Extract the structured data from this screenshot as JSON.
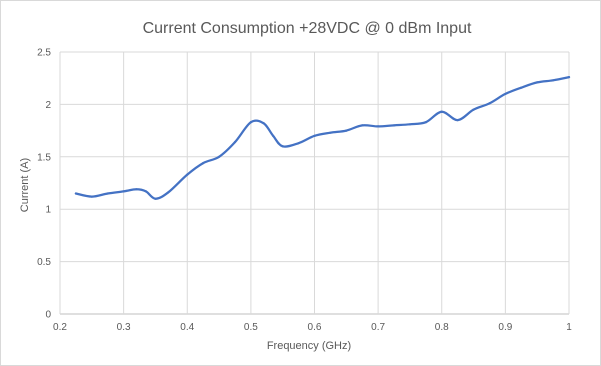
{
  "chart_data": {
    "type": "line",
    "title": "Current Consumption +28VDC @ 0 dBm Input",
    "xlabel": "Frequency (GHz)",
    "ylabel": "Current (A)",
    "xlim": [
      0.2,
      1.0
    ],
    "ylim": [
      0,
      2.5
    ],
    "x_ticks": [
      "0.2",
      "0.3",
      "0.4",
      "0.5",
      "0.6",
      "0.7",
      "0.8",
      "0.9",
      "1"
    ],
    "y_ticks": [
      "0",
      "0.5",
      "1",
      "1.5",
      "2",
      "2.5"
    ],
    "grid": true,
    "series": [
      {
        "color": "#4472c4",
        "x": [
          0.225,
          0.25,
          0.275,
          0.3,
          0.32,
          0.335,
          0.35,
          0.37,
          0.4,
          0.425,
          0.45,
          0.475,
          0.5,
          0.52,
          0.535,
          0.55,
          0.575,
          0.6,
          0.625,
          0.65,
          0.675,
          0.7,
          0.725,
          0.75,
          0.775,
          0.8,
          0.825,
          0.85,
          0.875,
          0.9,
          0.925,
          0.95,
          0.975,
          1.0
        ],
        "y": [
          1.15,
          1.12,
          1.15,
          1.17,
          1.19,
          1.17,
          1.1,
          1.16,
          1.33,
          1.44,
          1.5,
          1.64,
          1.83,
          1.82,
          1.7,
          1.6,
          1.63,
          1.7,
          1.73,
          1.75,
          1.8,
          1.79,
          1.8,
          1.81,
          1.83,
          1.93,
          1.85,
          1.95,
          2.01,
          2.1,
          2.16,
          2.21,
          2.23,
          2.26
        ]
      }
    ]
  }
}
